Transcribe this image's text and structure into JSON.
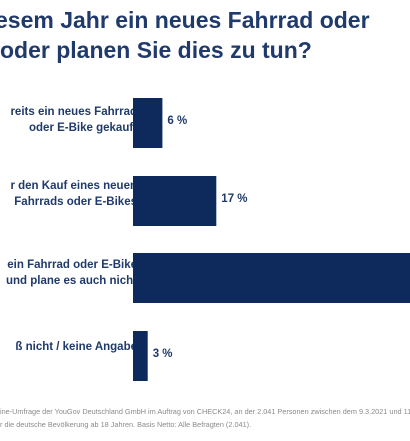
{
  "title": {
    "line1": "esem Jahr ein neues Fahrrad oder",
    "line2": "oder planen Sie dies zu tun?"
  },
  "chart_data": {
    "type": "bar",
    "orientation": "horizontal",
    "bar_color": "#0e2a5c",
    "categories": [
      [
        "reits ein neues Fahrrad",
        "oder E-Bike gekauft"
      ],
      [
        "r den Kauf eines neuen",
        "Fahrrads oder E-Bikes"
      ],
      [
        "ein Fahrrad oder E-Bike",
        "und plane es auch nicht"
      ],
      [
        "ß nicht / keine Angabe"
      ]
    ],
    "values": [
      6,
      17,
      null,
      3
    ],
    "value_labels": [
      "6 %",
      "17 %",
      "",
      "3 %"
    ],
    "xlim": [
      0,
      100
    ]
  },
  "footer": {
    "line1": "ine-Umfrage der YouGov Deutschland GmbH im Auftrag von CHECK24, an der 2.041 Personen zwischen dem 9.3.2021 und 11.3",
    "line2": "r die deutsche Bevölkerung ab 18 Jahren. Basis Netto: Alle Befragten (2.041)."
  }
}
